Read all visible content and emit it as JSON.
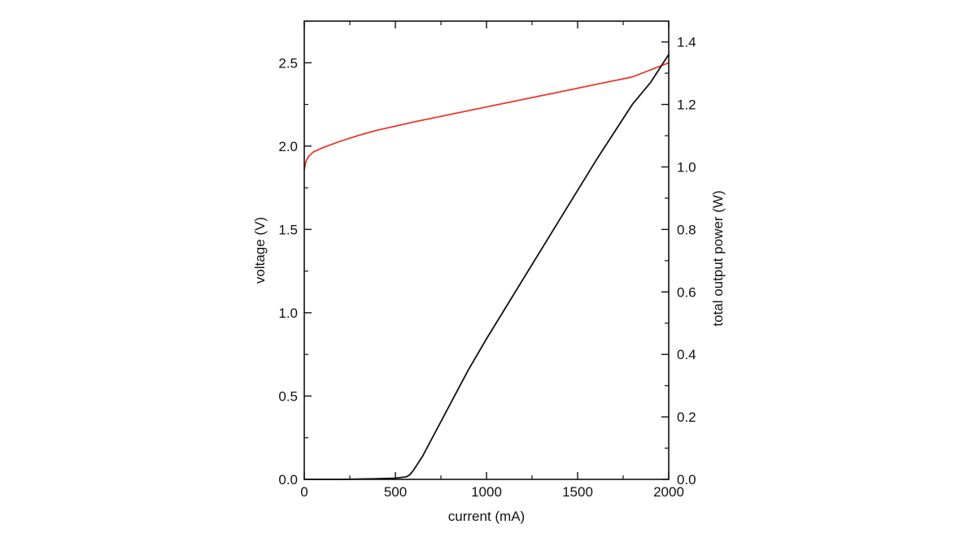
{
  "chart_data": {
    "type": "line",
    "title": "",
    "xlabel": "current (mA)",
    "ylabel": "voltage (V)",
    "y2label": "total output power (W)",
    "xlim": [
      0,
      2000
    ],
    "ylim": [
      0,
      2.75
    ],
    "y2lim": [
      0,
      1.4667
    ],
    "grid": false,
    "x_ticks": [
      0,
      500,
      1000,
      1500,
      2000
    ],
    "x_tick_labels": [
      "0",
      "500",
      "1000",
      "1500",
      "2000"
    ],
    "y_ticks": [
      0,
      0.5,
      1.0,
      1.5,
      2.0,
      2.5
    ],
    "y_tick_labels": [
      "0.0",
      "0.5",
      "1.0",
      "1.5",
      "2.0",
      "2.5"
    ],
    "y2_ticks": [
      0,
      0.2,
      0.4,
      0.6,
      0.8,
      1.0,
      1.2,
      1.4
    ],
    "y2_tick_labels": [
      "0.0",
      "0.2",
      "0.4",
      "0.6",
      "0.8",
      "1.0",
      "1.2",
      "1.4"
    ],
    "series": [
      {
        "axis": "left",
        "color": "#e8392b",
        "x": [
          0,
          10,
          25,
          50,
          100,
          200,
          300,
          400,
          500,
          600,
          800,
          1000,
          1200,
          1400,
          1600,
          1800,
          2000
        ],
        "y": [
          1.86,
          1.91,
          1.94,
          1.965,
          1.99,
          2.03,
          2.065,
          2.095,
          2.12,
          2.145,
          2.19,
          2.235,
          2.28,
          2.325,
          2.37,
          2.415,
          2.5
        ]
      },
      {
        "axis": "right",
        "color": "#111111",
        "x": [
          0,
          200,
          400,
          500,
          560,
          580,
          600,
          650,
          700,
          800,
          900,
          1000,
          1200,
          1400,
          1600,
          1800,
          1900,
          2000
        ],
        "y": [
          0.0,
          0.0,
          0.002,
          0.004,
          0.008,
          0.015,
          0.03,
          0.075,
          0.13,
          0.24,
          0.35,
          0.45,
          0.64,
          0.83,
          1.02,
          1.2,
          1.27,
          1.36
        ]
      }
    ]
  }
}
